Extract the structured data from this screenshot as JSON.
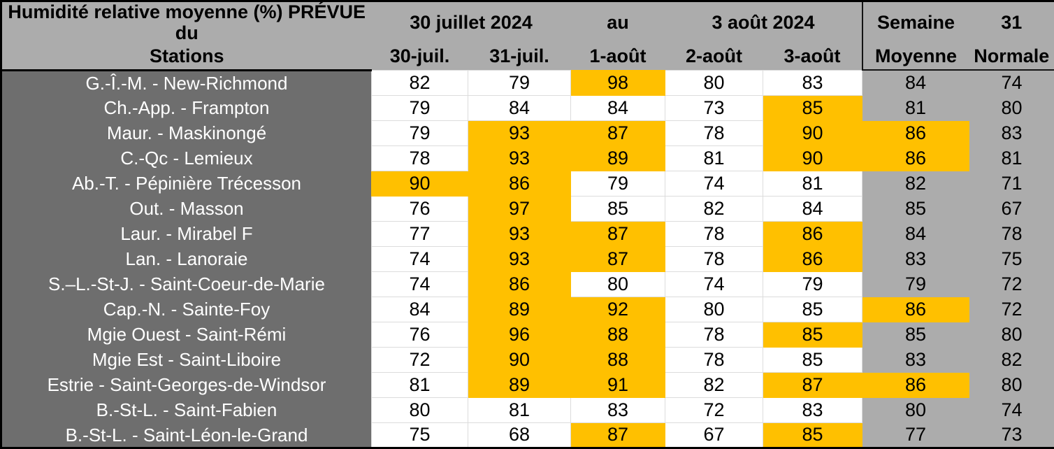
{
  "colors": {
    "highlight": "#FFC000",
    "header_bg": "#ACACAC",
    "station_column_bg": "#6E6E6E",
    "summary_columns_bg": "#ACACAC",
    "grid_line": "#DCDCDC",
    "frame_border": "#000000",
    "station_text": "#FFFFFF",
    "value_text": "#000000"
  },
  "chart_data": {
    "type": "table",
    "title": "Humidité relative moyenne (%) PRÉVUE du 30 juillet 2024 au 3 août 2024",
    "header": {
      "col1_line1": "Humidité relative moyenne (%) PRÉVUE du",
      "col1_line2": "Stations",
      "dates_group_left": "30 juillet 2024",
      "dates_group_mid": "au",
      "dates_group_right": "3 août 2024",
      "week_top": "Semaine",
      "week_bottom": "Moyenne",
      "normal_top": "31",
      "normal_bottom": "Normale",
      "day_columns": [
        "30-juil.",
        "31-juil.",
        "1-août",
        "2-août",
        "3-août"
      ]
    },
    "value_columns": [
      "30-juil.",
      "31-juil.",
      "1-août",
      "2-août",
      "3-août",
      "Semaine Moyenne",
      "31 Normale"
    ],
    "rows": [
      {
        "station": "G.-Î.-M. - New-Richmond",
        "values": [
          82,
          79,
          98,
          80,
          83,
          84,
          74
        ],
        "highlight": [
          2
        ]
      },
      {
        "station": "Ch.-App. - Frampton",
        "values": [
          79,
          84,
          84,
          73,
          85,
          81,
          80
        ],
        "highlight": [
          4
        ]
      },
      {
        "station": "Maur. - Maskinongé",
        "values": [
          79,
          93,
          87,
          78,
          90,
          86,
          83
        ],
        "highlight": [
          1,
          2,
          4,
          5
        ]
      },
      {
        "station": "C.-Qc - Lemieux",
        "values": [
          78,
          93,
          89,
          81,
          90,
          86,
          81
        ],
        "highlight": [
          1,
          2,
          4,
          5
        ]
      },
      {
        "station": "Ab.-T. - Pépinière Trécesson",
        "values": [
          90,
          86,
          79,
          74,
          81,
          82,
          71
        ],
        "highlight": [
          0,
          1
        ]
      },
      {
        "station": "Out. - Masson",
        "values": [
          76,
          97,
          85,
          82,
          84,
          85,
          67
        ],
        "highlight": [
          1
        ]
      },
      {
        "station": "Laur. - Mirabel F",
        "values": [
          77,
          93,
          87,
          78,
          86,
          84,
          78
        ],
        "highlight": [
          1,
          2,
          4
        ]
      },
      {
        "station": "Lan. - Lanoraie",
        "values": [
          74,
          93,
          87,
          78,
          86,
          83,
          75
        ],
        "highlight": [
          1,
          2,
          4
        ]
      },
      {
        "station": "S.–L.-St-J. - Saint-Coeur-de-Marie",
        "values": [
          74,
          86,
          80,
          74,
          79,
          79,
          72
        ],
        "highlight": [
          1
        ]
      },
      {
        "station": "Cap.-N. - Sainte-Foy",
        "values": [
          84,
          89,
          92,
          80,
          85,
          86,
          72
        ],
        "highlight": [
          1,
          2,
          5
        ]
      },
      {
        "station": "Mgie Ouest - Saint-Rémi",
        "values": [
          76,
          96,
          88,
          78,
          85,
          85,
          80
        ],
        "highlight": [
          1,
          2,
          4
        ]
      },
      {
        "station": "Mgie Est - Saint-Liboire",
        "values": [
          72,
          90,
          88,
          78,
          85,
          83,
          82
        ],
        "highlight": [
          1,
          2
        ]
      },
      {
        "station": "Estrie - Saint-Georges-de-Windsor",
        "values": [
          81,
          89,
          91,
          82,
          87,
          86,
          80
        ],
        "highlight": [
          1,
          2,
          4,
          5
        ]
      },
      {
        "station": "B.-St-L. - Saint-Fabien",
        "values": [
          80,
          81,
          83,
          72,
          83,
          80,
          74
        ],
        "highlight": []
      },
      {
        "station": "B.-St-L. - Saint-Léon-le-Grand",
        "values": [
          75,
          68,
          87,
          67,
          85,
          77,
          73
        ],
        "highlight": [
          2,
          4
        ]
      }
    ]
  }
}
